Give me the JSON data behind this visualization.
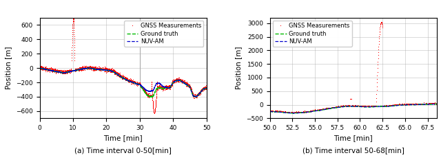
{
  "fig_width": 6.4,
  "fig_height": 2.36,
  "dpi": 100,
  "subplot_a": {
    "title": "(a) Time interval 0-50[min]",
    "xlabel": "Time [min]",
    "ylabel": "Position [m]",
    "xlim": [
      0,
      50
    ],
    "ylim": [
      -700,
      700
    ],
    "yticks": [
      -600,
      -400,
      -200,
      0,
      200,
      400,
      600
    ],
    "xticks": [
      0,
      10,
      20,
      30,
      40,
      50
    ],
    "vline_x": 30,
    "gnss_color": "#ff0000",
    "gt_color": "#00bb00",
    "nuv_color": "#0000cc"
  },
  "subplot_b": {
    "title": "(b) Time interval 50-68[min]",
    "xlabel": "Time [min]",
    "ylabel": "Position [m]",
    "xlim": [
      50.0,
      68.5
    ],
    "ylim": [
      -500,
      3200
    ],
    "yticks": [
      -500,
      0,
      500,
      1000,
      1500,
      2000,
      2500,
      3000
    ],
    "xticks": [
      50.0,
      52.5,
      55.0,
      57.5,
      60.0,
      62.5,
      65.0,
      67.5
    ],
    "gnss_color": "#ff0000",
    "gt_color": "#00bb00",
    "nuv_color": "#0000cc"
  },
  "legend": {
    "gnss_label": "GNSS Measurements",
    "gt_label": "Ground truth",
    "nuv_label": "NUV-AM"
  },
  "grid_color": "#aaaaaa",
  "grid_alpha": 0.6
}
